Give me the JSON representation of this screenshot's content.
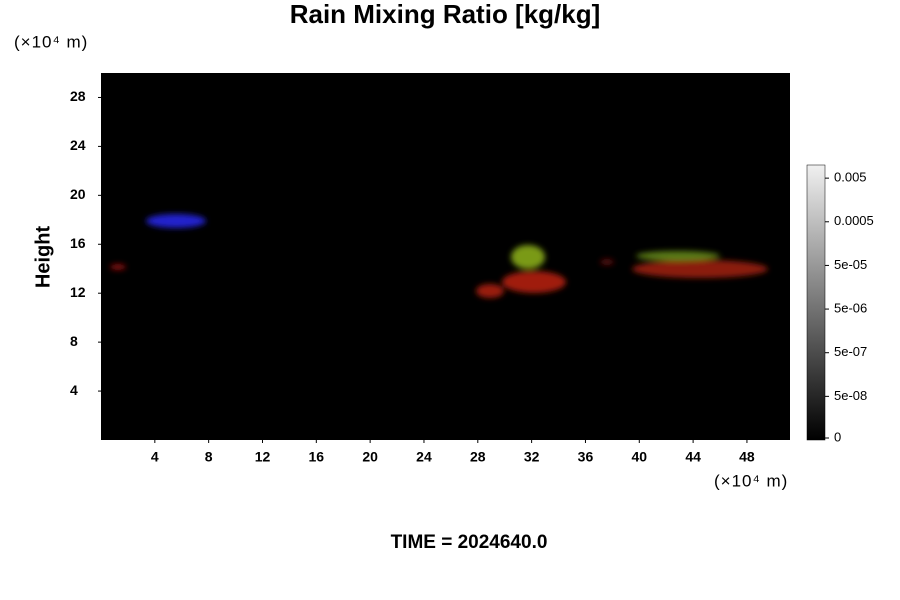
{
  "chart_data": {
    "type": "field",
    "title": "Rain Mixing Ratio [kg/kg]",
    "ylabel": "Height",
    "y_unit": "(×10⁴ m)",
    "x_unit": "(×10⁴ m)",
    "time_label": "TIME = 2024640.0",
    "xlim": [
      0,
      51.2
    ],
    "xticks": [
      4,
      8,
      12,
      16,
      20,
      24,
      28,
      32,
      36,
      40,
      44,
      48
    ],
    "ylim": [
      0,
      30
    ],
    "yticks": [
      4,
      8,
      12,
      16,
      20,
      24,
      28
    ],
    "colorbar": {
      "log_scale": true,
      "clim": [
        5e-09,
        0.01
      ],
      "ticks": [
        {
          "value": 0,
          "label": "0"
        },
        {
          "value": 5e-08,
          "label": "5e-08"
        },
        {
          "value": 5e-07,
          "label": "5e-07"
        },
        {
          "value": 5e-06,
          "label": "5e-06"
        },
        {
          "value": 5e-05,
          "label": "5e-05"
        },
        {
          "value": 0.0005,
          "label": "0.0005"
        },
        {
          "value": 0.005,
          "label": "0.005"
        }
      ]
    }
  }
}
